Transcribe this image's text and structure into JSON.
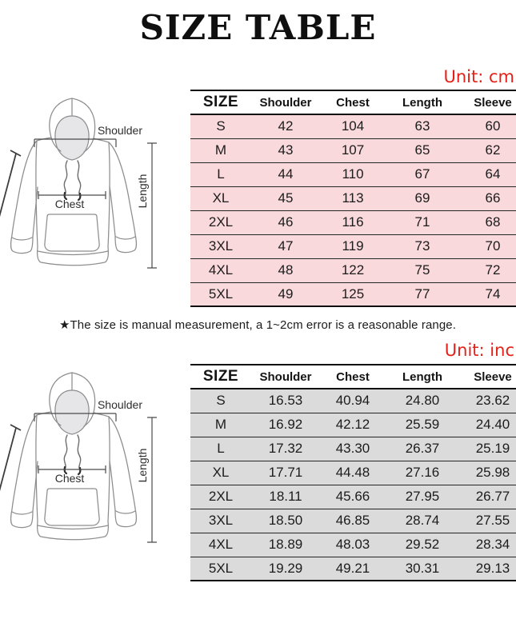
{
  "title": "SIZE TABLE",
  "note": "★The size is manual measurement, a 1~2cm error is a reasonable range.",
  "diagram": {
    "shoulder_label": "Shoulder",
    "chest_label": "Chest",
    "length_label": "Length"
  },
  "colors": {
    "unit_text": "#e32119",
    "cm_row_bg": "#f9d9db",
    "inch_row_bg": "#dbdbdb",
    "border_dark": "#0d0d0d"
  },
  "chart_data": [
    {
      "type": "table",
      "name": "size-table-cm",
      "unit": "cm",
      "unit_label": "Unit: cm",
      "columns": [
        "SIZE",
        "Shoulder",
        "Chest",
        "Length",
        "Sleeve"
      ],
      "rows": [
        [
          "S",
          "42",
          "104",
          "63",
          "60"
        ],
        [
          "M",
          "43",
          "107",
          "65",
          "62"
        ],
        [
          "L",
          "44",
          "110",
          "67",
          "64"
        ],
        [
          "XL",
          "45",
          "113",
          "69",
          "66"
        ],
        [
          "2XL",
          "46",
          "116",
          "71",
          "68"
        ],
        [
          "3XL",
          "47",
          "119",
          "73",
          "70"
        ],
        [
          "4XL",
          "48",
          "122",
          "75",
          "72"
        ],
        [
          "5XL",
          "49",
          "125",
          "77",
          "74"
        ]
      ],
      "row_bg": "#f9d9db"
    },
    {
      "type": "table",
      "name": "size-table-inch",
      "unit": "inch",
      "unit_label": "Unit: inc",
      "columns": [
        "SIZE",
        "Shoulder",
        "Chest",
        "Length",
        "Sleeve"
      ],
      "rows": [
        [
          "S",
          "16.53",
          "40.94",
          "24.80",
          "23.62"
        ],
        [
          "M",
          "16.92",
          "42.12",
          "25.59",
          "24.40"
        ],
        [
          "L",
          "17.32",
          "43.30",
          "26.37",
          "25.19"
        ],
        [
          "XL",
          "17.71",
          "44.48",
          "27.16",
          "25.98"
        ],
        [
          "2XL",
          "18.11",
          "45.66",
          "27.95",
          "26.77"
        ],
        [
          "3XL",
          "18.50",
          "46.85",
          "28.74",
          "27.55"
        ],
        [
          "4XL",
          "18.89",
          "48.03",
          "29.52",
          "28.34"
        ],
        [
          "5XL",
          "19.29",
          "49.21",
          "30.31",
          "29.13"
        ]
      ],
      "row_bg": "#dbdbdb"
    }
  ]
}
